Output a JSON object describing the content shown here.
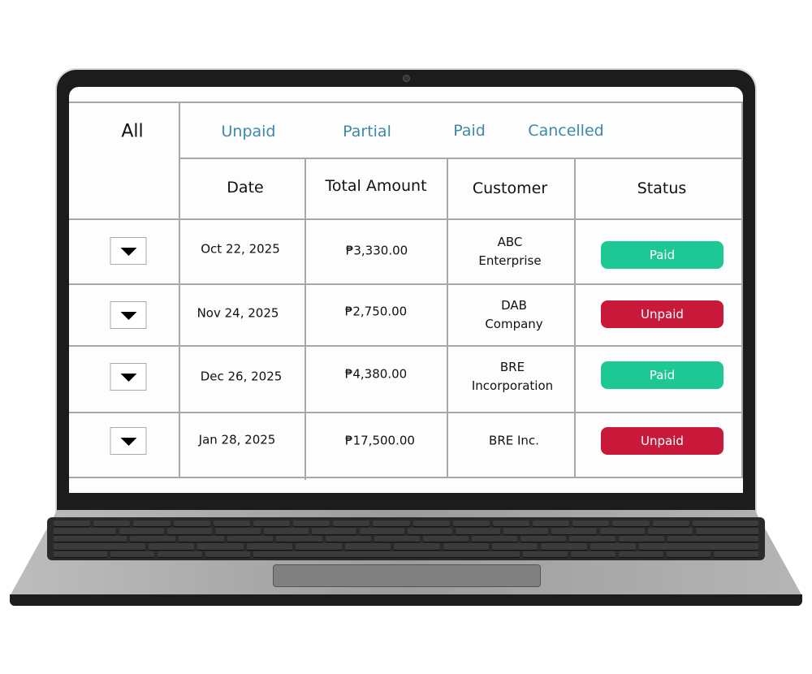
{
  "filters": {
    "all": "All",
    "tabs": [
      "Unpaid",
      "Partial",
      "Paid",
      "Cancelled"
    ]
  },
  "columns": [
    "Date",
    "Total Amount",
    "Customer",
    "Status"
  ],
  "rows": [
    {
      "date": "Oct 22, 2025",
      "amount": "₱3,330.00",
      "customer_1": "ABC",
      "customer_2": "Enterprise",
      "status": "Paid"
    },
    {
      "date": "Nov 24, 2025",
      "amount": "₱2,750.00",
      "customer_1": "DAB",
      "customer_2": "Company",
      "status": "Unpaid"
    },
    {
      "date": "Dec 26, 2025",
      "amount": "₱4,380.00",
      "customer_1": "BRE",
      "customer_2": "Incorporation",
      "status": "Paid"
    },
    {
      "date": "Jan 28, 2025",
      "amount": "₱17,500.00",
      "customer_1": "BRE Inc.",
      "customer_2": "",
      "status": "Unpaid"
    }
  ],
  "colors": {
    "tab": "#3a8aa8",
    "paid": "#1ec894",
    "unpaid": "#c8193a"
  },
  "icons": {
    "expand": "triangle-down-icon"
  }
}
